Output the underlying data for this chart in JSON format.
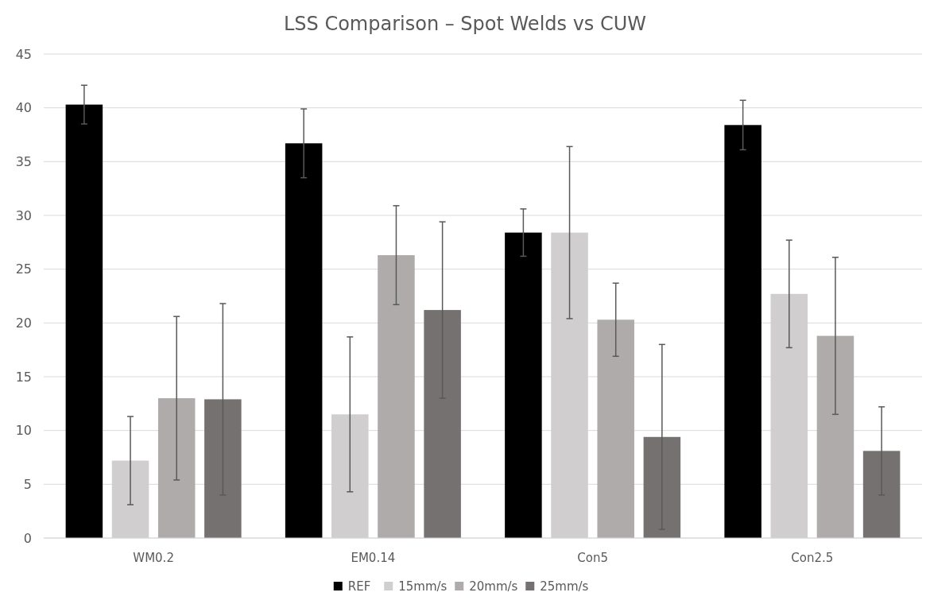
{
  "chart_data": {
    "type": "bar",
    "title": "LSS Comparison – Spot Welds vs CUW",
    "categories": [
      "WM0.2",
      "EM0.14",
      "Con5",
      "Con2.5"
    ],
    "series": [
      {
        "name": "REF",
        "color": "#000000",
        "values": [
          40.3,
          36.7,
          28.4,
          38.4
        ],
        "errors": [
          1.8,
          3.2,
          2.2,
          2.3
        ]
      },
      {
        "name": "15mm/s",
        "color": "#d0cece",
        "values": [
          7.2,
          11.5,
          28.4,
          22.7
        ],
        "errors": [
          4.1,
          7.2,
          8.0,
          5.0
        ]
      },
      {
        "name": "20mm/s",
        "color": "#afabab",
        "values": [
          13.0,
          26.3,
          20.3,
          18.8
        ],
        "errors": [
          7.6,
          4.6,
          3.4,
          7.3
        ]
      },
      {
        "name": "25mm/s",
        "color": "#767171",
        "values": [
          12.9,
          21.2,
          9.4,
          8.1
        ],
        "errors": [
          8.9,
          8.2,
          8.6,
          4.1
        ]
      }
    ],
    "ylim": [
      0,
      45
    ],
    "yticks": [
      0,
      5,
      10,
      15,
      20,
      25,
      30,
      35,
      40,
      45
    ],
    "grid": "y",
    "legend": "bottom"
  }
}
